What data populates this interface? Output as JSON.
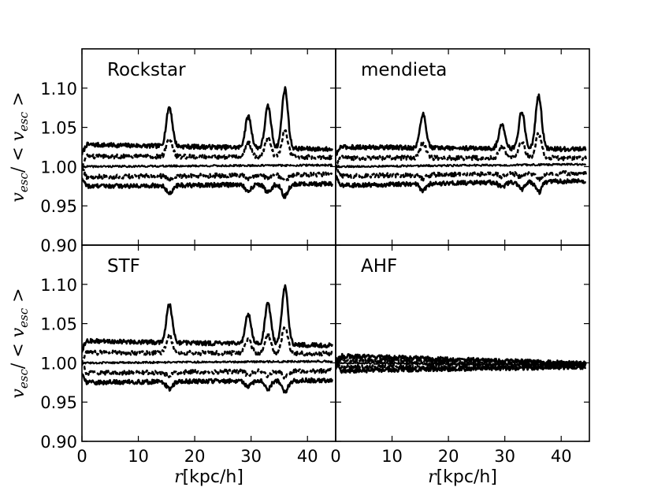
{
  "chart_data": [
    {
      "type": "line",
      "panel_label": "Rockstar",
      "xlim": [
        0,
        45
      ],
      "ylim": [
        0.9,
        1.15
      ],
      "xticks": [],
      "yticks": [
        "0.90",
        "0.95",
        "1.00",
        "1.05",
        "1.10"
      ],
      "xlabel": "",
      "ylabel": "v_esc / <v_esc>",
      "ylabel_parts": {
        "v": "v",
        "sub": "esc",
        "slash": "/",
        "open": "<",
        "close": ">"
      },
      "line_color": "#000000",
      "peaks": [
        {
          "r": 15.5,
          "height": 1.075
        },
        {
          "r": 29.5,
          "height": 1.065
        },
        {
          "r": 33,
          "height": 1.078
        },
        {
          "r": 36,
          "height": 1.101
        }
      ],
      "series": [
        {
          "style": "solid",
          "base": 1.028,
          "end": 1.022,
          "peak_scale": 1.0
        },
        {
          "style": "dashed",
          "base": 1.013,
          "end": 1.012,
          "peak_scale": 0.45
        },
        {
          "style": "solid",
          "base": 1.0,
          "end": 1.002,
          "peak_scale": 0.0
        },
        {
          "style": "dashed",
          "base": 0.987,
          "end": 0.99,
          "peak_scale": -0.1
        },
        {
          "style": "solid",
          "base": 0.975,
          "end": 0.978,
          "peak_scale": -0.2
        }
      ]
    },
    {
      "type": "line",
      "panel_label": "mendieta",
      "xlim": [
        0,
        45
      ],
      "ylim": [
        0.9,
        1.15
      ],
      "xticks": [],
      "yticks": [],
      "xlabel": "",
      "ylabel": "",
      "line_color": "#000000",
      "peaks": [
        {
          "r": 15.5,
          "height": 1.068
        },
        {
          "r": 29.5,
          "height": 1.057
        },
        {
          "r": 33,
          "height": 1.072
        },
        {
          "r": 36,
          "height": 1.093
        }
      ],
      "series": [
        {
          "style": "solid",
          "base": 1.025,
          "end": 1.022,
          "peak_scale": 1.0
        },
        {
          "style": "dashed",
          "base": 1.011,
          "end": 1.011,
          "peak_scale": 0.45
        },
        {
          "style": "solid",
          "base": 1.0,
          "end": 1.003,
          "peak_scale": 0.0
        },
        {
          "style": "dashed",
          "base": 0.988,
          "end": 0.992,
          "peak_scale": -0.1
        },
        {
          "style": "solid",
          "base": 0.976,
          "end": 0.982,
          "peak_scale": -0.2
        }
      ]
    },
    {
      "type": "line",
      "panel_label": "STF",
      "xlim": [
        0,
        45
      ],
      "ylim": [
        0.9,
        1.15
      ],
      "xticks": [
        "0",
        "10",
        "20",
        "30",
        "40"
      ],
      "yticks": [
        "0.90",
        "0.95",
        "1.00",
        "1.05",
        "1.10"
      ],
      "xlabel": "r[kpc/h]",
      "xlabel_parts": {
        "var": "r",
        "unit": "[kpc/h]"
      },
      "ylabel": "v_esc / <v_esc>",
      "ylabel_parts": {
        "v": "v",
        "sub": "esc",
        "slash": "/",
        "open": "<",
        "close": ">"
      },
      "line_color": "#000000",
      "peaks": [
        {
          "r": 15.5,
          "height": 1.073
        },
        {
          "r": 29.5,
          "height": 1.063
        },
        {
          "r": 33,
          "height": 1.077
        },
        {
          "r": 36,
          "height": 1.1
        }
      ],
      "series": [
        {
          "style": "solid",
          "base": 1.028,
          "end": 1.022,
          "peak_scale": 1.0
        },
        {
          "style": "dashed",
          "base": 1.013,
          "end": 1.012,
          "peak_scale": 0.45
        },
        {
          "style": "solid",
          "base": 1.0,
          "end": 1.002,
          "peak_scale": 0.0
        },
        {
          "style": "dashed",
          "base": 0.987,
          "end": 0.99,
          "peak_scale": -0.1
        },
        {
          "style": "solid",
          "base": 0.975,
          "end": 0.978,
          "peak_scale": -0.2
        }
      ]
    },
    {
      "type": "line",
      "panel_label": "AHF",
      "xlim": [
        0,
        45
      ],
      "ylim": [
        0.9,
        1.15
      ],
      "xticks": [
        "0",
        "10",
        "20",
        "30",
        "40"
      ],
      "yticks": [],
      "xlabel": "r[kpc/h]",
      "xlabel_parts": {
        "var": "r",
        "unit": "[kpc/h]"
      },
      "ylabel": "",
      "line_color": "#000000",
      "peaks": [],
      "series": [
        {
          "style": "solid",
          "base": 1.009,
          "end": 0.999,
          "peak_scale": 0.0
        },
        {
          "style": "dashed",
          "base": 1.004,
          "end": 0.998,
          "peak_scale": 0.0
        },
        {
          "style": "solid",
          "base": 1.0,
          "end": 0.997,
          "peak_scale": 0.0
        },
        {
          "style": "dashed",
          "base": 0.995,
          "end": 0.996,
          "peak_scale": 0.0
        },
        {
          "style": "solid",
          "base": 0.99,
          "end": 0.995,
          "peak_scale": 0.0
        }
      ]
    }
  ]
}
